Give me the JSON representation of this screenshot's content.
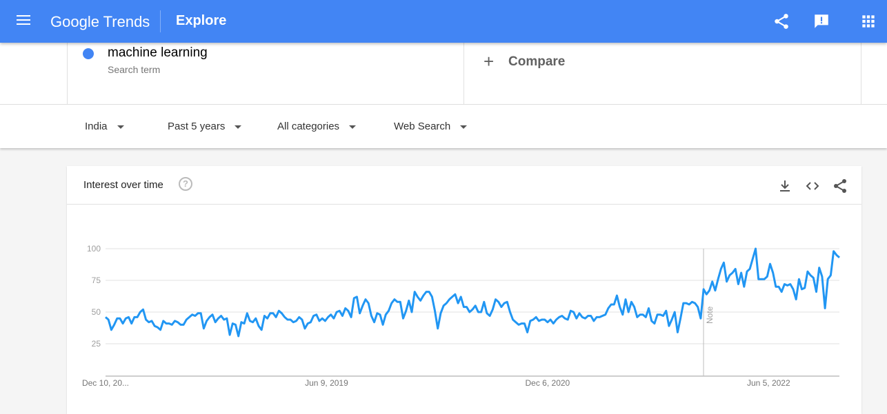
{
  "header": {
    "logo": "Google Trends",
    "title": "Explore",
    "icons": [
      "menu-icon",
      "share-icon",
      "feedback-icon",
      "apps-icon"
    ],
    "color": "#4285f4"
  },
  "search": {
    "term": "machine learning",
    "term_sub": "Search term",
    "compare_label": "Compare",
    "term_color": "#4285f4"
  },
  "filters": [
    {
      "label": "India"
    },
    {
      "label": "Past 5 years"
    },
    {
      "label": "All categories"
    },
    {
      "label": "Web Search"
    }
  ],
  "card": {
    "title": "Interest over time",
    "icons": [
      "help-icon",
      "download-icon",
      "embed-icon",
      "share-icon"
    ],
    "note_label": "Note"
  },
  "chart_data": {
    "type": "line",
    "title": "",
    "xlabel": "",
    "ylabel": "",
    "ylim": [
      0,
      100
    ],
    "grid": true,
    "yticks": [
      25,
      50,
      75,
      100
    ],
    "xticks": [
      {
        "label": "Dec 10, 20...",
        "week": 0
      },
      {
        "label": "Jun 9, 2019",
        "week": 78
      },
      {
        "label": "Dec 6, 2020",
        "week": 156
      },
      {
        "label": "Jun 5, 2022",
        "week": 234
      }
    ],
    "series": [
      {
        "color": "#2196f3",
        "values": [
          46,
          44,
          36,
          40,
          45,
          45,
          41,
          45,
          46,
          41,
          46,
          46,
          50,
          52,
          44,
          42,
          43,
          39,
          38,
          36,
          43,
          41,
          41,
          40,
          43,
          42,
          40,
          40,
          44,
          46,
          48,
          47,
          49,
          49,
          37,
          43,
          46,
          48,
          42,
          45,
          47,
          44,
          45,
          32,
          41,
          40,
          31,
          42,
          41,
          49,
          43,
          42,
          45,
          39,
          36,
          47,
          45,
          49,
          49,
          46,
          51,
          49,
          46,
          44,
          44,
          42,
          43,
          46,
          44,
          37,
          41,
          42,
          47,
          48,
          43,
          45,
          43,
          46,
          48,
          45,
          50,
          51,
          47,
          53,
          51,
          46,
          61,
          62,
          49,
          55,
          60,
          57,
          47,
          42,
          49,
          48,
          40,
          48,
          51,
          57,
          60,
          58,
          58,
          45,
          51,
          59,
          50,
          66,
          62,
          59,
          63,
          66,
          66,
          62,
          51,
          37,
          49,
          55,
          57,
          60,
          62,
          64,
          57,
          62,
          54,
          54,
          50,
          52,
          55,
          50,
          50,
          58,
          49,
          47,
          52,
          60,
          58,
          54,
          57,
          58,
          50,
          44,
          42,
          40,
          41,
          41,
          34,
          43,
          44,
          46,
          43,
          44,
          44,
          42,
          44,
          41,
          44,
          46,
          47,
          45,
          44,
          51,
          50,
          45,
          49,
          46,
          45,
          47,
          47,
          43,
          46,
          46,
          47,
          48,
          53,
          56,
          56,
          63,
          54,
          48,
          60,
          50,
          58,
          54,
          46,
          48,
          48,
          46,
          53,
          43,
          41,
          48,
          48,
          47,
          51,
          39,
          44,
          50,
          34,
          45,
          57,
          57,
          56,
          58,
          57,
          54,
          45,
          68,
          64,
          67,
          74,
          67,
          76,
          84,
          89,
          74,
          79,
          81,
          84,
          72,
          81,
          70,
          82,
          84,
          92,
          100,
          76,
          76,
          76,
          78,
          88,
          81,
          70,
          70,
          66,
          72,
          71,
          72,
          68,
          60,
          76,
          68,
          69,
          82,
          79,
          77,
          66,
          85,
          78,
          53,
          76,
          79,
          98,
          95,
          93
        ]
      }
    ]
  }
}
